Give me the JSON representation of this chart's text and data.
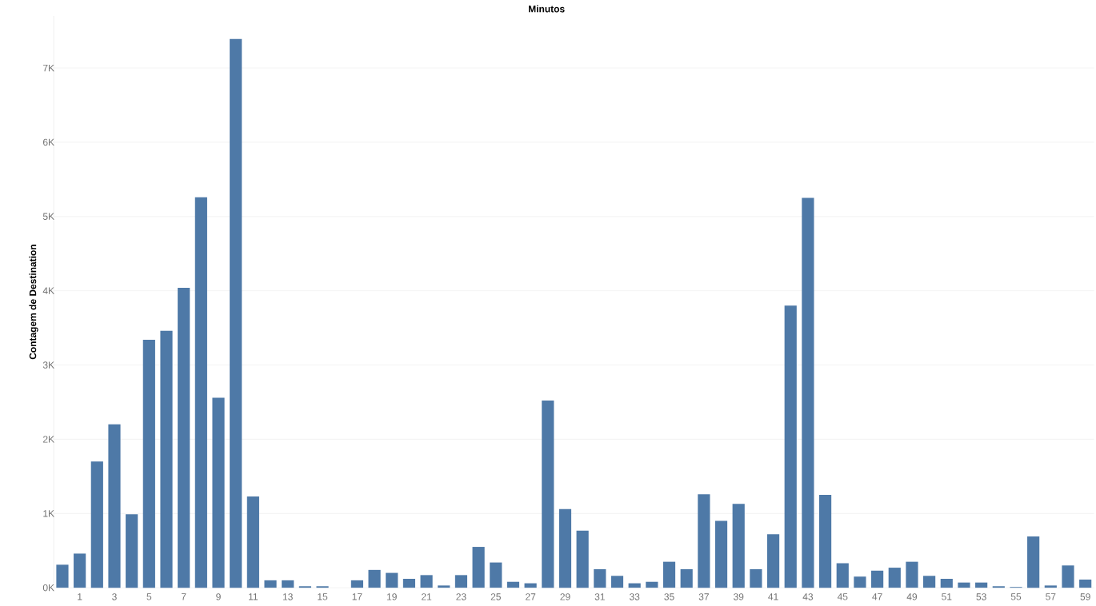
{
  "chart_data": {
    "type": "bar",
    "title": "Minutos",
    "ylabel": "Contagem de Destination",
    "categories": [
      null,
      "1",
      null,
      "3",
      null,
      "5",
      null,
      "7",
      null,
      "9",
      null,
      "11",
      null,
      "13",
      null,
      "15",
      null,
      "17",
      null,
      "19",
      null,
      "21",
      null,
      "23",
      null,
      "25",
      null,
      "27",
      null,
      "29",
      null,
      "31",
      null,
      "33",
      null,
      "35",
      null,
      "37",
      null,
      "39",
      null,
      "41",
      null,
      "43",
      null,
      "45",
      null,
      "47",
      null,
      "49",
      null,
      "51",
      null,
      "53",
      null,
      "55",
      null,
      "57",
      null,
      "59"
    ],
    "values": [
      310,
      460,
      1700,
      2200,
      990,
      3340,
      3460,
      4040,
      5260,
      2560,
      7390,
      1230,
      100,
      100,
      20,
      20,
      0,
      100,
      240,
      200,
      120,
      170,
      30,
      170,
      550,
      340,
      80,
      60,
      2520,
      1060,
      770,
      250,
      160,
      60,
      80,
      350,
      250,
      1260,
      900,
      1130,
      250,
      720,
      3800,
      5250,
      1250,
      330,
      150,
      230,
      270,
      350,
      160,
      120,
      70,
      70,
      20,
      10,
      690,
      30,
      300,
      110
    ],
    "color": "#4e79a7",
    "ylim": [
      0,
      7700
    ],
    "yticks": [
      {
        "value": 0,
        "label": "0K"
      },
      {
        "value": 1000,
        "label": "1K"
      },
      {
        "value": 2000,
        "label": "2K"
      },
      {
        "value": 3000,
        "label": "3K"
      },
      {
        "value": 4000,
        "label": "4K"
      },
      {
        "value": 5000,
        "label": "5K"
      },
      {
        "value": 6000,
        "label": "6K"
      },
      {
        "value": 7000,
        "label": "7K"
      }
    ],
    "grid": "y"
  }
}
